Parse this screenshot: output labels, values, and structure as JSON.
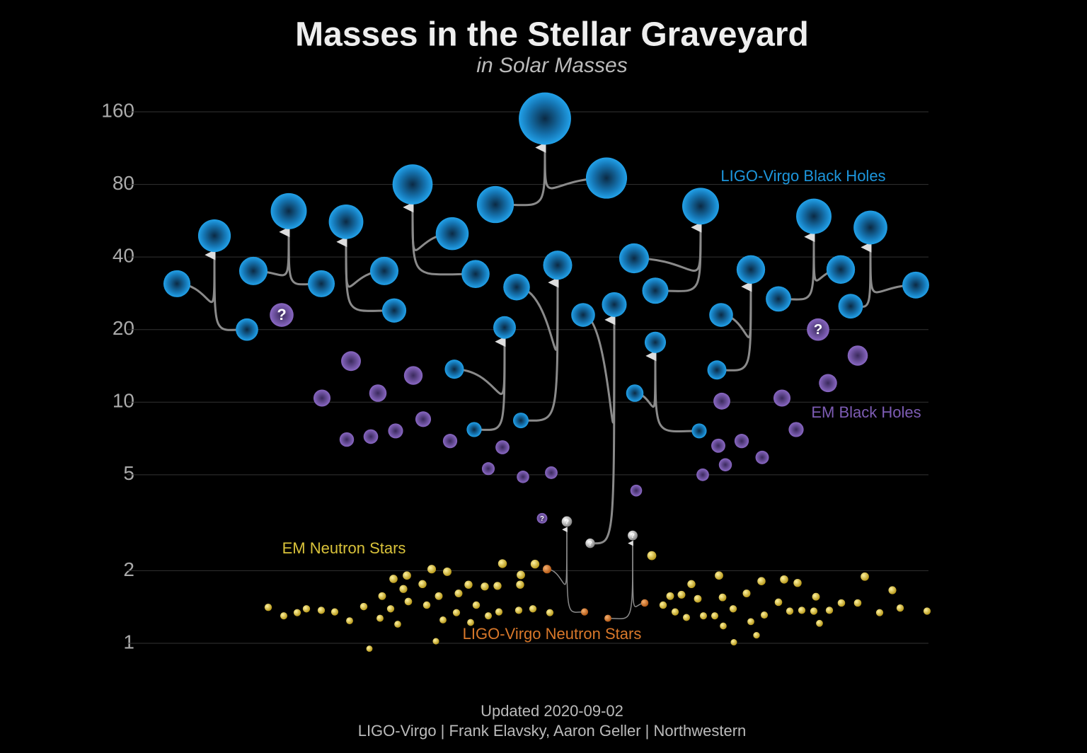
{
  "chart_data": {
    "type": "scatter",
    "title": "Masses in the Stellar Graveyard",
    "subtitle": "in Solar Masses",
    "footer": [
      "Updated 2020-09-02",
      "LIGO-Virgo | Frank Elavsky, Aaron Geller | Northwestern"
    ],
    "log_y": true,
    "grid": true,
    "ylim": [
      1,
      160
    ],
    "yticks": [
      1,
      2,
      5,
      10,
      20,
      40,
      80,
      160
    ],
    "xlim": [
      200,
      1330
    ],
    "series": [
      {
        "name": "LIGO-Virgo Black Holes",
        "color": "#1d96dc",
        "unknown_color": "#bbbbbb",
        "mergers": [
          {
            "x": [
              250,
              349,
              303
            ],
            "values": [
              31,
              20,
              49
            ]
          },
          {
            "x": [
              358,
              454,
              408
            ],
            "values": [
              35,
              31,
              62
            ]
          },
          {
            "x": [
              543,
              557,
              489
            ],
            "values": [
              35,
              24,
              56
            ]
          },
          {
            "x": [
              639,
              672,
              583
            ],
            "values": [
              50,
              34,
              80
            ]
          },
          {
            "x": [
              700,
              857,
              770
            ],
            "values": [
              66,
              85,
              150
            ]
          },
          {
            "x": [
              730,
              736,
              788
            ],
            "values": [
              30,
              8.4,
              37
            ]
          },
          {
            "x": [
              642,
              670,
              713
            ],
            "values": [
              13.7,
              7.7,
              20.4
            ]
          },
          {
            "x": [
              824,
              834,
              868
            ],
            "values": [
              23,
              2.6,
              25.4
            ],
            "labels": [
              null,
              "?",
              null
            ]
          },
          {
            "x": [
              896,
              926,
              990
            ],
            "values": [
              39.5,
              29,
              65
            ]
          },
          {
            "x": [
              897,
              988,
              926
            ],
            "values": [
              10.9,
              7.6,
              17.7
            ]
          },
          {
            "x": [
              1019,
              1013,
              1061
            ],
            "values": [
              23,
              13.6,
              35.5
            ]
          },
          {
            "x": [
              1100,
              1188,
              1150
            ],
            "values": [
              26.8,
              35.5,
              59
            ]
          },
          {
            "x": [
              1202,
              1294,
              1230
            ],
            "values": [
              25,
              30.6,
              53
            ]
          }
        ]
      },
      {
        "name": "EM Black Holes",
        "color": "#7d5cb4",
        "x": [
          455,
          496,
          534,
          584,
          490,
          524,
          559,
          598,
          636,
          710,
          690,
          739,
          779,
          899,
          1020,
          1015,
          1048,
          1025,
          993,
          1077,
          1105,
          1125,
          1170,
          1212,
          398,
          1156,
          766
        ],
        "values": [
          10.4,
          14.8,
          10.9,
          12.9,
          7.0,
          7.2,
          7.6,
          8.5,
          6.9,
          6.5,
          5.3,
          4.9,
          5.1,
          4.3,
          10.1,
          6.6,
          6.9,
          5.5,
          5.0,
          5.9,
          10.4,
          7.7,
          12.0,
          15.6,
          23,
          20,
          3.3
        ],
        "labels": [
          null,
          null,
          null,
          null,
          null,
          null,
          null,
          null,
          null,
          null,
          null,
          null,
          null,
          null,
          null,
          null,
          null,
          null,
          null,
          null,
          null,
          null,
          null,
          null,
          "?",
          "?",
          "?"
        ]
      },
      {
        "name": "EM Neutron Stars",
        "color": "#d9c23a",
        "x": [
          379,
          401,
          420,
          433,
          454,
          473,
          494,
          514,
          522,
          537,
          540,
          552,
          556,
          562,
          570,
          575,
          577,
          597,
          603,
          610,
          620,
          626,
          632,
          616,
          645,
          648,
          662,
          665,
          673,
          685,
          690,
          703,
          710,
          705,
          733,
          735,
          736,
          753,
          756,
          777,
          921,
          937,
          947,
          954,
          963,
          970,
          977,
          986,
          994,
          1010,
          1016,
          1021,
          1022,
          1036,
          1037,
          1055,
          1061,
          1069,
          1080,
          1076,
          1100,
          1108,
          1116,
          1127,
          1133,
          1150,
          1153,
          1158,
          1172,
          1189,
          1212,
          1222,
          1243,
          1261,
          1272,
          1310
        ],
        "values": [
          1.41,
          1.3,
          1.34,
          1.39,
          1.37,
          1.35,
          1.24,
          1.42,
          0.95,
          1.27,
          1.57,
          1.39,
          1.85,
          1.2,
          1.68,
          1.91,
          1.49,
          1.76,
          1.44,
          2.03,
          1.57,
          1.25,
          1.98,
          1.02,
          1.34,
          1.61,
          1.75,
          1.22,
          1.44,
          1.72,
          1.3,
          1.73,
          2.14,
          1.35,
          1.37,
          1.75,
          1.92,
          1.39,
          2.13,
          1.34,
          2.31,
          1.44,
          1.57,
          1.35,
          1.59,
          1.28,
          1.76,
          1.53,
          1.3,
          1.3,
          1.91,
          1.55,
          1.18,
          1.39,
          1.01,
          1.61,
          1.23,
          1.08,
          1.31,
          1.81,
          1.48,
          1.84,
          1.36,
          1.78,
          1.37,
          1.36,
          1.56,
          1.21,
          1.37,
          1.47,
          1.47,
          1.89,
          1.34,
          1.66,
          1.4,
          1.36
        ]
      },
      {
        "name": "LIGO-Virgo Neutron Stars",
        "color": "#d9782a",
        "unknown_color": "#bbbbbb",
        "mergers": [
          {
            "x": [
              773,
              826,
              801
            ],
            "values": [
              2.03,
              1.35,
              3.2
            ],
            "labels": [
              null,
              null,
              "?"
            ]
          },
          {
            "x": [
              859,
              911,
              894
            ],
            "values": [
              1.27,
              1.47,
              2.8
            ],
            "labels": [
              null,
              null,
              "?"
            ]
          }
        ]
      }
    ]
  }
}
